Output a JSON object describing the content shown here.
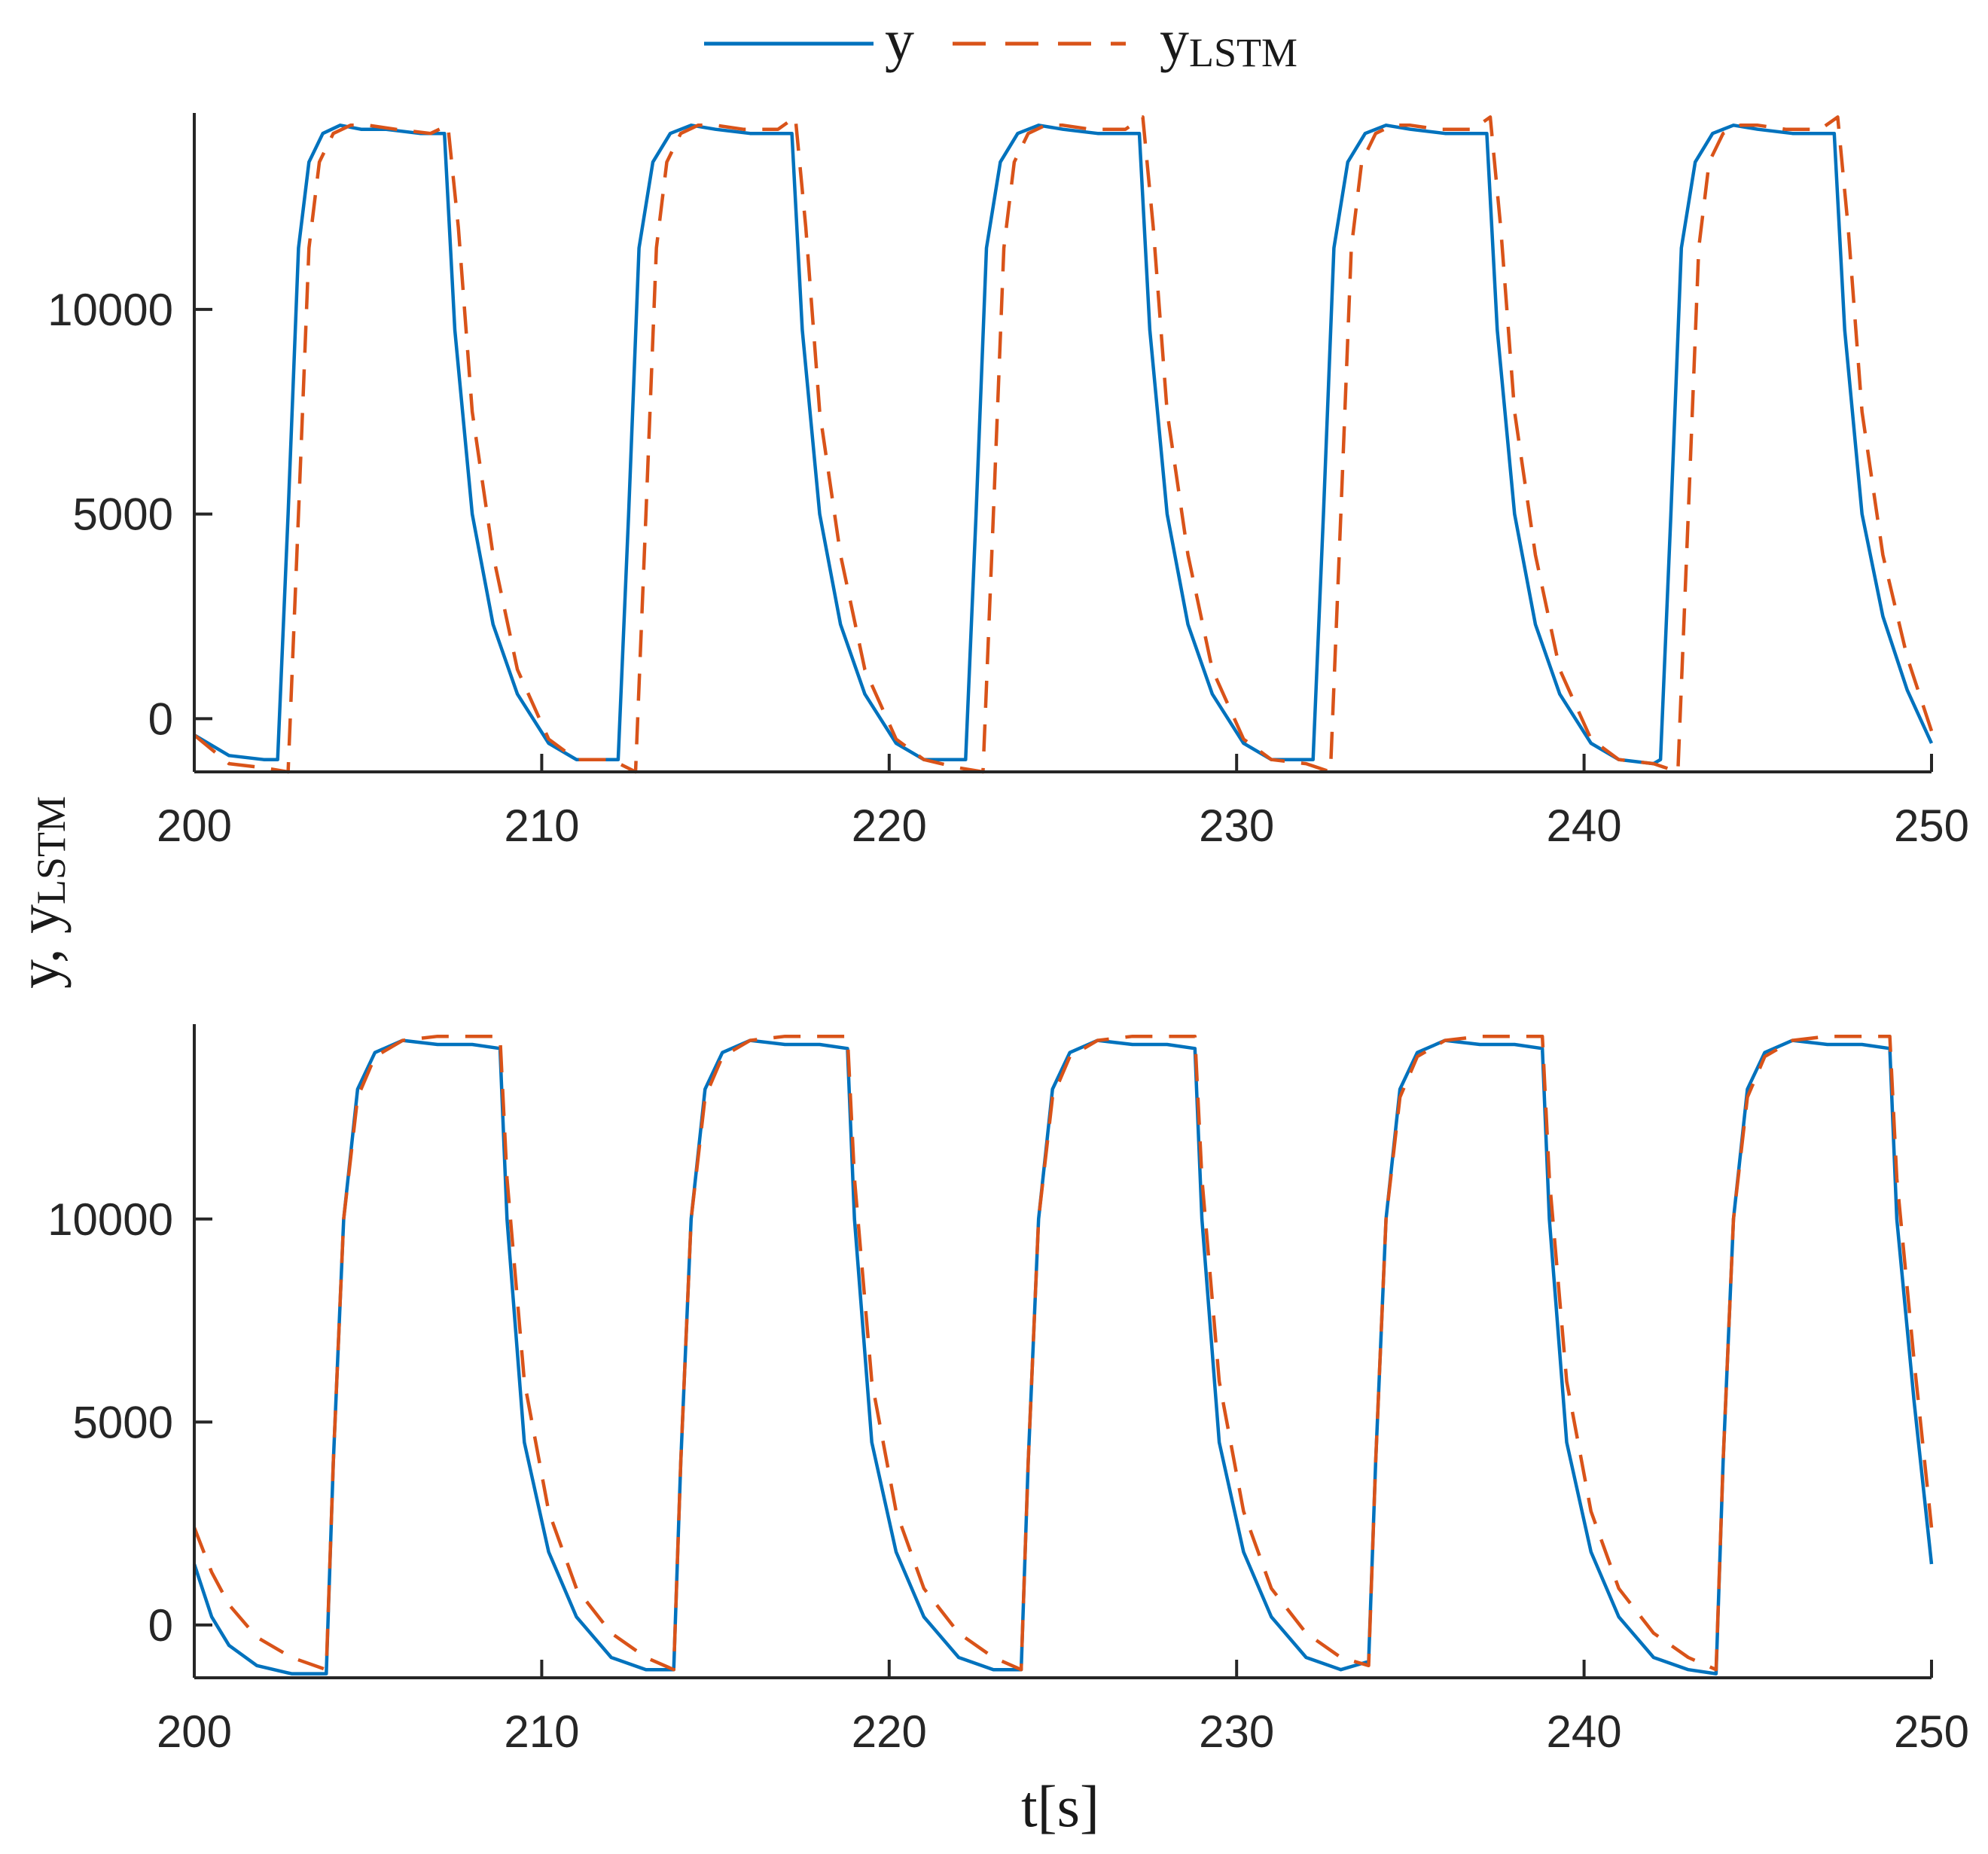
{
  "legend": {
    "placement": "top-center",
    "entries": [
      {
        "label": "y",
        "color": "#0072bd",
        "style": "solid"
      },
      {
        "label": "y",
        "subscript": "LSTM",
        "color": "#d95319",
        "style": "dashed"
      }
    ]
  },
  "ylabel": {
    "main": "y, y",
    "sub": "LSTM"
  },
  "xlabel": "t[s]",
  "chart_data": [
    {
      "type": "line",
      "xlim": [
        200,
        250
      ],
      "ylim": [
        -1300,
        14800
      ],
      "xticks": [
        200,
        210,
        220,
        230,
        240,
        250
      ],
      "xtick_labels": [
        "200",
        "210",
        "220",
        "230",
        "240",
        "250"
      ],
      "yticks": [
        0,
        5000,
        10000
      ],
      "ytick_labels": [
        "0",
        "5000",
        "10000"
      ],
      "grid": false,
      "series": [
        {
          "name": "y",
          "color": "#0072bd",
          "style": "solid",
          "x": [
            200,
            201,
            202,
            202.4,
            202.7,
            203.0,
            203.3,
            203.7,
            204.2,
            204.8,
            205.5,
            206.5,
            207.2,
            207.5,
            208.0,
            208.6,
            209.3,
            210.2,
            211.0,
            212.0,
            212.2,
            212.5,
            212.8,
            213.2,
            213.7,
            214.3,
            215.0,
            216.0,
            217.2,
            217.5,
            218.0,
            218.6,
            219.3,
            220.2,
            221.0,
            222.0,
            222.2,
            222.5,
            222.8,
            223.2,
            223.7,
            224.3,
            225.0,
            226.0,
            227.2,
            227.5,
            228.0,
            228.6,
            229.3,
            230.2,
            231.0,
            232.0,
            232.2,
            232.5,
            232.8,
            233.2,
            233.7,
            234.3,
            235.0,
            236.0,
            237.2,
            237.5,
            238.0,
            238.6,
            239.3,
            240.2,
            241.0,
            242.0,
            242.2,
            242.5,
            242.8,
            243.2,
            243.7,
            244.3,
            245.0,
            246.0,
            247.2,
            247.5,
            248.0,
            248.6,
            249.3,
            250.0
          ],
          "y": [
            -400,
            -900,
            -1000,
            -1000,
            5000,
            11500,
            13600,
            14300,
            14500,
            14400,
            14400,
            14300,
            14300,
            9500,
            5000,
            2300,
            600,
            -600,
            -1000,
            -1000,
            -1000,
            5000,
            11500,
            13600,
            14300,
            14500,
            14400,
            14300,
            14300,
            9500,
            5000,
            2300,
            600,
            -600,
            -1000,
            -1000,
            -1000,
            5000,
            11500,
            13600,
            14300,
            14500,
            14400,
            14300,
            14300,
            9500,
            5000,
            2300,
            600,
            -600,
            -1000,
            -1000,
            -1000,
            5000,
            11500,
            13600,
            14300,
            14500,
            14400,
            14300,
            14300,
            9500,
            5000,
            2300,
            600,
            -600,
            -1000,
            -1100,
            -1000,
            5000,
            11500,
            13600,
            14300,
            14500,
            14400,
            14300,
            14300,
            9500,
            5000,
            2500,
            700,
            -600
          ]
        },
        {
          "name": "y_LSTM",
          "color": "#d95319",
          "style": "dashed",
          "x": [
            200,
            201,
            202,
            202.7,
            203.0,
            203.3,
            203.6,
            204.0,
            204.5,
            205.0,
            205.8,
            206.8,
            207.3,
            207.6,
            208.0,
            208.6,
            209.3,
            210.2,
            211.0,
            212.0,
            212.7,
            213.0,
            213.3,
            213.6,
            214.0,
            214.5,
            215.0,
            215.8,
            216.8,
            217.3,
            217.6,
            218.0,
            218.6,
            219.3,
            220.2,
            221.0,
            222.0,
            222.7,
            223.0,
            223.3,
            223.6,
            224.0,
            224.5,
            225.0,
            225.8,
            226.8,
            227.3,
            227.6,
            228.0,
            228.6,
            229.3,
            230.2,
            231.0,
            232.0,
            232.7,
            233.0,
            233.3,
            233.6,
            234.0,
            234.5,
            235.0,
            235.8,
            236.8,
            237.3,
            237.6,
            238.0,
            238.6,
            239.3,
            240.2,
            241.0,
            242.0,
            242.7,
            243.0,
            243.3,
            243.6,
            244.0,
            244.5,
            245.0,
            245.8,
            246.8,
            247.3,
            247.6,
            248.0,
            248.6,
            249.3,
            250.0
          ],
          "y": [
            -400,
            -1100,
            -1200,
            -1300,
            5000,
            11500,
            13600,
            14300,
            14500,
            14500,
            14400,
            14300,
            14500,
            12000,
            7500,
            4000,
            1200,
            -500,
            -1000,
            -1000,
            -1300,
            5000,
            11500,
            13600,
            14300,
            14500,
            14500,
            14400,
            14400,
            14700,
            12000,
            7500,
            4000,
            1200,
            -500,
            -1000,
            -1200,
            -1300,
            5000,
            11500,
            13600,
            14300,
            14500,
            14500,
            14400,
            14400,
            14700,
            12000,
            7500,
            4000,
            1200,
            -500,
            -1000,
            -1100,
            -1300,
            5000,
            11500,
            13600,
            14300,
            14500,
            14500,
            14400,
            14400,
            14700,
            12000,
            7500,
            4000,
            1200,
            -500,
            -1000,
            -1100,
            -1300,
            5000,
            11500,
            13600,
            14300,
            14500,
            14500,
            14400,
            14400,
            14700,
            12000,
            7500,
            4000,
            1500,
            -300
          ]
        }
      ]
    },
    {
      "type": "line",
      "xlim": [
        200,
        250
      ],
      "ylim": [
        -1300,
        14800
      ],
      "xticks": [
        200,
        210,
        220,
        230,
        240,
        250
      ],
      "xtick_labels": [
        "200",
        "210",
        "220",
        "230",
        "240",
        "250"
      ],
      "yticks": [
        0,
        5000,
        10000
      ],
      "ytick_labels": [
        "0",
        "5000",
        "10000"
      ],
      "grid": false,
      "series": [
        {
          "name": "y",
          "color": "#0072bd",
          "style": "solid",
          "x": [
            200,
            200.5,
            201.0,
            201.8,
            202.8,
            203.8,
            204.0,
            204.3,
            204.7,
            205.2,
            206.0,
            207.0,
            208.0,
            208.8,
            209.0,
            209.5,
            210.2,
            211.0,
            212.0,
            213.0,
            213.8,
            214.0,
            214.3,
            214.7,
            215.2,
            216.0,
            217.0,
            218.0,
            218.8,
            219.0,
            219.5,
            220.2,
            221.0,
            222.0,
            223.0,
            223.8,
            224.0,
            224.3,
            224.7,
            225.2,
            226.0,
            227.0,
            228.0,
            228.8,
            229.0,
            229.5,
            230.2,
            231.0,
            232.0,
            233.0,
            233.8,
            234.0,
            234.3,
            234.7,
            235.2,
            236.0,
            237.0,
            238.0,
            238.8,
            239.0,
            239.5,
            240.2,
            241.0,
            242.0,
            243.0,
            243.8,
            244.0,
            244.3,
            244.7,
            245.2,
            246.0,
            247.0,
            248.0,
            248.8,
            249.0,
            249.5,
            250.0
          ],
          "y": [
            1500,
            200,
            -500,
            -1000,
            -1200,
            -1200,
            4000,
            10000,
            13200,
            14100,
            14400,
            14300,
            14300,
            14200,
            10000,
            4500,
            1800,
            200,
            -800,
            -1100,
            -1100,
            4000,
            10000,
            13200,
            14100,
            14400,
            14300,
            14300,
            14200,
            10000,
            4500,
            1800,
            200,
            -800,
            -1100,
            -1100,
            4000,
            10000,
            13200,
            14100,
            14400,
            14300,
            14300,
            14200,
            10000,
            4500,
            1800,
            200,
            -800,
            -1100,
            -900,
            4000,
            10000,
            13200,
            14100,
            14400,
            14300,
            14300,
            14200,
            10000,
            4500,
            1800,
            200,
            -800,
            -1100,
            -1200,
            4000,
            10000,
            13200,
            14100,
            14400,
            14300,
            14300,
            14200,
            10000,
            5500,
            1500
          ]
        },
        {
          "name": "y_LSTM",
          "color": "#d95319",
          "style": "dashed",
          "x": [
            200,
            200.5,
            201.0,
            201.8,
            202.8,
            203.8,
            204.0,
            204.3,
            204.7,
            205.2,
            206.0,
            207.0,
            208.0,
            208.8,
            209.0,
            209.5,
            210.2,
            211.0,
            212.0,
            213.0,
            213.8,
            214.0,
            214.3,
            214.7,
            215.2,
            216.0,
            217.0,
            218.0,
            218.8,
            219.0,
            219.5,
            220.2,
            221.0,
            222.0,
            223.0,
            223.8,
            224.0,
            224.3,
            224.7,
            225.2,
            226.0,
            227.0,
            228.0,
            228.8,
            229.0,
            229.5,
            230.2,
            231.0,
            232.0,
            233.0,
            233.8,
            234.0,
            234.3,
            234.7,
            235.2,
            236.0,
            237.0,
            238.0,
            238.8,
            239.0,
            239.5,
            240.2,
            241.0,
            242.0,
            243.0,
            243.8,
            244.0,
            244.3,
            244.7,
            245.2,
            246.0,
            247.0,
            248.0,
            248.8,
            249.0,
            249.5,
            250.0
          ],
          "y": [
            2400,
            1300,
            500,
            -300,
            -800,
            -1100,
            4000,
            10000,
            13000,
            14000,
            14400,
            14500,
            14500,
            14500,
            11000,
            6000,
            2800,
            900,
            -200,
            -800,
            -1100,
            4000,
            10000,
            13000,
            14000,
            14400,
            14500,
            14500,
            14500,
            11000,
            6000,
            2800,
            900,
            -200,
            -800,
            -1100,
            4000,
            10000,
            13000,
            14000,
            14400,
            14500,
            14500,
            14500,
            11000,
            6000,
            2800,
            900,
            -200,
            -800,
            -1000,
            4000,
            10000,
            13000,
            14000,
            14400,
            14500,
            14500,
            14500,
            11000,
            6000,
            2800,
            900,
            -200,
            -800,
            -1100,
            4000,
            10000,
            13000,
            14000,
            14400,
            14500,
            14500,
            14500,
            11000,
            6500,
            2400
          ]
        }
      ]
    }
  ]
}
